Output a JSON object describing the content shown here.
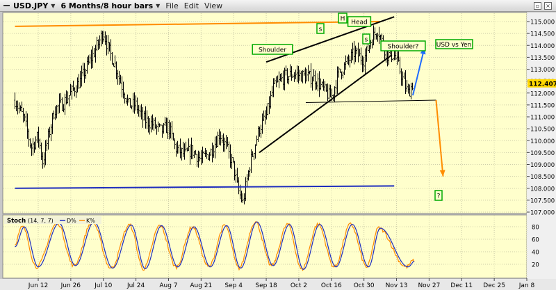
{
  "window": {
    "symbol": "USD.JPY",
    "period": "6 Months/8 hour bars",
    "menu": [
      "File",
      "Edit",
      "View"
    ]
  },
  "main_chart": {
    "title": "USD vs Yen",
    "last_price": "112.407",
    "y_ticks": [
      "115.000",
      "114.500",
      "114.000",
      "113.500",
      "113.000",
      "112.500",
      "112.000",
      "111.500",
      "111.000",
      "110.500",
      "110.000",
      "109.500",
      "109.000",
      "108.500",
      "108.000",
      "107.500",
      "107.000"
    ],
    "annotations": {
      "shoulder_left": "Shoulder",
      "head_h": "H",
      "head": "Head",
      "s_left": "s",
      "s_right": "s",
      "shoulder_right": "Shoulder?",
      "question": "?"
    }
  },
  "indicator": {
    "label": "Stoch",
    "params": "(14, 7, 7)",
    "d_label": "D%",
    "k_label": "K%",
    "y_ticks": [
      "80",
      "60",
      "40",
      "20"
    ]
  },
  "x_ticks": [
    "Jun 12",
    "Jun 26",
    "Jul 10",
    "Jul 24",
    "Aug 7",
    "Aug 21",
    "Sep 4",
    "Sep 18",
    "Oct 2",
    "Oct 16",
    "Oct 30",
    "Nov 13",
    "Nov 27",
    "Dec 11",
    "Dec 25",
    "Jan 8"
  ],
  "colors": {
    "chart_bg": "#ffffcc",
    "orange": "#ff8c00",
    "blue": "#1e2dbe",
    "arrow_blue": "#1e6bff",
    "label_green": "#00aa00",
    "price_tag": "#ffd700"
  },
  "chart_data": [
    {
      "type": "candlestick",
      "title": "USD vs Yen",
      "ylim": [
        106.9,
        115.3
      ],
      "x_ticks": [
        "Jun 12",
        "Jun 26",
        "Jul 10",
        "Jul 24",
        "Aug 7",
        "Aug 21",
        "Sep 4",
        "Sep 18",
        "Oct 2",
        "Oct 16",
        "Oct 30",
        "Nov 13",
        "Nov 27",
        "Dec 11",
        "Dec 25",
        "Jan 8"
      ],
      "last_value": 112.407,
      "price_path": [
        [
          "Jun 2",
          111.7
        ],
        [
          "Jun 6",
          110.9
        ],
        [
          "Jun 9",
          109.7
        ],
        [
          "Jun 12",
          110.2
        ],
        [
          "Jun 14",
          109.1
        ],
        [
          "Jun 19",
          111.3
        ],
        [
          "Jun 23",
          111.6
        ],
        [
          "Jun 26",
          112.0
        ],
        [
          "Jun 30",
          112.5
        ],
        [
          "Jul 4",
          113.3
        ],
        [
          "Jul 8",
          114.1
        ],
        [
          "Jul 10",
          114.6
        ],
        [
          "Jul 12",
          113.9
        ],
        [
          "Jul 15",
          113.2
        ],
        [
          "Jul 18",
          112.3
        ],
        [
          "Jul 21",
          111.5
        ],
        [
          "Jul 24",
          111.5
        ],
        [
          "Jul 27",
          110.9
        ],
        [
          "Jul 31",
          110.7
        ],
        [
          "Aug 4",
          110.4
        ],
        [
          "Aug 7",
          110.6
        ],
        [
          "Aug 10",
          109.7
        ],
        [
          "Aug 14",
          109.4
        ],
        [
          "Aug 17",
          109.6
        ],
        [
          "Aug 21",
          109.2
        ],
        [
          "Aug 25",
          109.5
        ],
        [
          "Aug 29",
          110.3
        ],
        [
          "Sep 1",
          109.7
        ],
        [
          "Sep 4",
          108.9
        ],
        [
          "Sep 6",
          107.9
        ],
        [
          "Sep 8",
          107.4
        ],
        [
          "Sep 11",
          109.0
        ],
        [
          "Sep 15",
          110.5
        ],
        [
          "Sep 18",
          111.0
        ],
        [
          "Sep 21",
          112.2
        ],
        [
          "Sep 26",
          112.7
        ],
        [
          "Sep 30",
          112.8
        ],
        [
          "Oct 5",
          112.7
        ],
        [
          "Oct 9",
          112.6
        ],
        [
          "Oct 13",
          112.1
        ],
        [
          "Oct 16",
          111.8
        ],
        [
          "Oct 19",
          112.8
        ],
        [
          "Oct 23",
          113.3
        ],
        [
          "Oct 26",
          113.7
        ],
        [
          "Oct 30",
          113.4
        ],
        [
          "Nov 2",
          114.2
        ],
        [
          "Nov 5",
          114.7
        ],
        [
          "Nov 7",
          114.1
        ],
        [
          "Nov 9",
          113.6
        ],
        [
          "Nov 12",
          113.6
        ],
        [
          "Nov 14",
          113.1
        ],
        [
          "Nov 16",
          112.5
        ],
        [
          "Nov 18",
          112.0
        ],
        [
          "Nov 20",
          112.4
        ]
      ],
      "trendlines": [
        {
          "name": "orange resistance",
          "color": "#ff8c00",
          "points": [
            [
              "Jun 2",
              114.8
            ],
            [
              "Nov 6",
              115.0
            ]
          ]
        },
        {
          "name": "blue support",
          "color": "#1e2dbe",
          "points": [
            [
              "Jun 2",
              108.0
            ],
            [
              "Nov 12",
              108.1
            ]
          ]
        },
        {
          "name": "upper wedge",
          "color": "#000000",
          "points": [
            [
              "Sep 18",
              113.3
            ],
            [
              "Nov 12",
              115.2
            ]
          ]
        },
        {
          "name": "lower wedge",
          "color": "#000000",
          "points": [
            [
              "Sep 15",
              109.5
            ],
            [
              "Nov 11",
              113.6
            ]
          ]
        },
        {
          "name": "neckline",
          "color": "#000000",
          "points": [
            [
              "Oct 5",
              111.6
            ],
            [
              "Nov 30",
              111.7
            ]
          ]
        },
        {
          "name": "projection down",
          "color": "#ff8c00",
          "points": [
            [
              "Nov 30",
              111.7
            ],
            [
              "Dec 3",
              108.5
            ]
          ]
        },
        {
          "name": "projection up",
          "color": "#1e6bff",
          "points": [
            [
              "Nov 20",
              111.9
            ],
            [
              "Nov 25",
              113.9
            ]
          ]
        }
      ]
    },
    {
      "type": "line",
      "title": "Stoch",
      "ylim": [
        0,
        100
      ],
      "y_ticks": [
        20,
        40,
        60,
        80
      ],
      "series": [
        {
          "name": "D%",
          "color": "#1e2dbe"
        },
        {
          "name": "K%",
          "color": "#ff8c00"
        }
      ],
      "oscillation_peaks": [
        [
          "Jun 6",
          82
        ],
        [
          "Jun 21",
          88
        ],
        [
          "Jul 6",
          90
        ],
        [
          "Jul 22",
          85
        ],
        [
          "Aug 4",
          84
        ],
        [
          "Aug 18",
          82
        ],
        [
          "Sep 1",
          84
        ],
        [
          "Sep 14",
          90
        ],
        [
          "Sep 28",
          86
        ],
        [
          "Oct 11",
          86
        ],
        [
          "Oct 25",
          86
        ],
        [
          "Nov 6",
          80
        ]
      ],
      "oscillation_troughs": [
        [
          "Jun 12",
          18
        ],
        [
          "Jun 28",
          20
        ],
        [
          "Jul 14",
          16
        ],
        [
          "Jul 28",
          15
        ],
        [
          "Aug 11",
          18
        ],
        [
          "Aug 25",
          18
        ],
        [
          "Sep 7",
          16
        ],
        [
          "Sep 21",
          20
        ],
        [
          "Oct 4",
          14
        ],
        [
          "Oct 18",
          18
        ],
        [
          "Nov 1",
          18
        ],
        [
          "Nov 18",
          18
        ]
      ]
    }
  ]
}
